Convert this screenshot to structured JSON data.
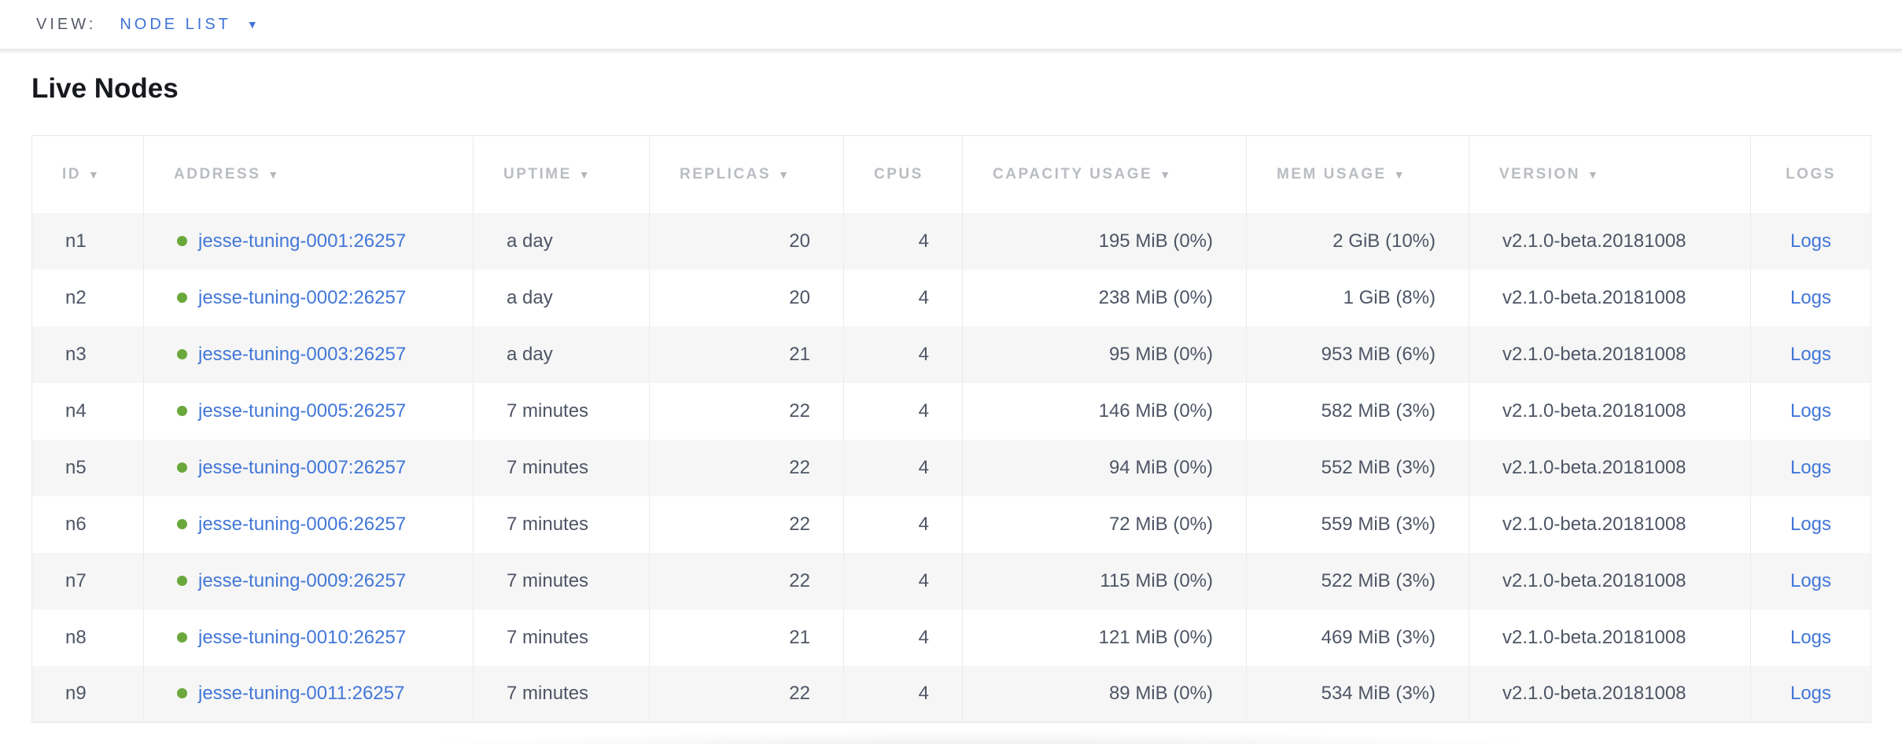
{
  "view_bar": {
    "label": "VIEW:",
    "selected_view": "NODE LIST",
    "dropdown_caret": "▼"
  },
  "page": {
    "title": "Live Nodes"
  },
  "colors": {
    "accent_blue": "#3e73d8",
    "link_blue": "#4277d8",
    "live_green": "#6aa83c",
    "header_gray": "#b9bcc1",
    "body_text": "#4e5565",
    "stripe_gray": "#f6f6f6",
    "border_gray": "#ebebeb"
  },
  "table": {
    "sort_caret": "▼",
    "columns": [
      {
        "key": "id",
        "label": "ID",
        "sortable": true,
        "align": "left"
      },
      {
        "key": "address",
        "label": "ADDRESS",
        "sortable": true,
        "align": "left"
      },
      {
        "key": "uptime",
        "label": "UPTIME",
        "sortable": true,
        "align": "left"
      },
      {
        "key": "replicas",
        "label": "REPLICAS",
        "sortable": true,
        "align": "right"
      },
      {
        "key": "cpus",
        "label": "CPUS",
        "sortable": false,
        "align": "right"
      },
      {
        "key": "capacity_usage",
        "label": "CAPACITY USAGE",
        "sortable": true,
        "align": "right"
      },
      {
        "key": "mem_usage",
        "label": "MEM USAGE",
        "sortable": true,
        "align": "right"
      },
      {
        "key": "version",
        "label": "VERSION",
        "sortable": true,
        "align": "left"
      },
      {
        "key": "logs",
        "label": "LOGS",
        "sortable": false,
        "align": "center"
      }
    ],
    "rows": [
      {
        "id": "n1",
        "status": "live",
        "address": "jesse-tuning-0001:26257",
        "uptime": "a day",
        "replicas": "20",
        "cpus": "4",
        "capacity_usage": "195 MiB (0%)",
        "mem_usage": "2 GiB (10%)",
        "version": "v2.1.0-beta.20181008",
        "logs": "Logs"
      },
      {
        "id": "n2",
        "status": "live",
        "address": "jesse-tuning-0002:26257",
        "uptime": "a day",
        "replicas": "20",
        "cpus": "4",
        "capacity_usage": "238 MiB (0%)",
        "mem_usage": "1 GiB (8%)",
        "version": "v2.1.0-beta.20181008",
        "logs": "Logs"
      },
      {
        "id": "n3",
        "status": "live",
        "address": "jesse-tuning-0003:26257",
        "uptime": "a day",
        "replicas": "21",
        "cpus": "4",
        "capacity_usage": "95 MiB (0%)",
        "mem_usage": "953 MiB (6%)",
        "version": "v2.1.0-beta.20181008",
        "logs": "Logs"
      },
      {
        "id": "n4",
        "status": "live",
        "address": "jesse-tuning-0005:26257",
        "uptime": "7 minutes",
        "replicas": "22",
        "cpus": "4",
        "capacity_usage": "146 MiB (0%)",
        "mem_usage": "582 MiB (3%)",
        "version": "v2.1.0-beta.20181008",
        "logs": "Logs"
      },
      {
        "id": "n5",
        "status": "live",
        "address": "jesse-tuning-0007:26257",
        "uptime": "7 minutes",
        "replicas": "22",
        "cpus": "4",
        "capacity_usage": "94 MiB (0%)",
        "mem_usage": "552 MiB (3%)",
        "version": "v2.1.0-beta.20181008",
        "logs": "Logs"
      },
      {
        "id": "n6",
        "status": "live",
        "address": "jesse-tuning-0006:26257",
        "uptime": "7 minutes",
        "replicas": "22",
        "cpus": "4",
        "capacity_usage": "72 MiB (0%)",
        "mem_usage": "559 MiB (3%)",
        "version": "v2.1.0-beta.20181008",
        "logs": "Logs"
      },
      {
        "id": "n7",
        "status": "live",
        "address": "jesse-tuning-0009:26257",
        "uptime": "7 minutes",
        "replicas": "22",
        "cpus": "4",
        "capacity_usage": "115 MiB (0%)",
        "mem_usage": "522 MiB (3%)",
        "version": "v2.1.0-beta.20181008",
        "logs": "Logs"
      },
      {
        "id": "n8",
        "status": "live",
        "address": "jesse-tuning-0010:26257",
        "uptime": "7 minutes",
        "replicas": "21",
        "cpus": "4",
        "capacity_usage": "121 MiB (0%)",
        "mem_usage": "469 MiB (3%)",
        "version": "v2.1.0-beta.20181008",
        "logs": "Logs"
      },
      {
        "id": "n9",
        "status": "live",
        "address": "jesse-tuning-0011:26257",
        "uptime": "7 minutes",
        "replicas": "22",
        "cpus": "4",
        "capacity_usage": "89 MiB (0%)",
        "mem_usage": "534 MiB (3%)",
        "version": "v2.1.0-beta.20181008",
        "logs": "Logs"
      }
    ]
  }
}
